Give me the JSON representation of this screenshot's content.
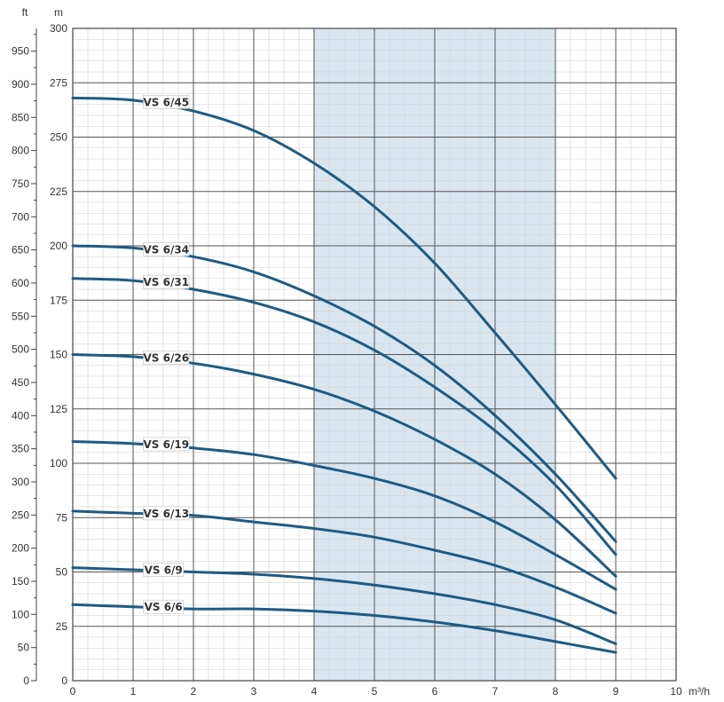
{
  "chart_data": {
    "type": "line",
    "title": "",
    "xlabel": "m³/h",
    "ylabel": "m",
    "y2label": "ft",
    "xlim": [
      0,
      10
    ],
    "ylim": [
      0,
      300
    ],
    "y2lim": [
      0,
      984.25
    ],
    "x_ticks": [
      0,
      1,
      2,
      3,
      4,
      5,
      6,
      7,
      8,
      9,
      10
    ],
    "y_ticks": [
      0,
      25,
      50,
      75,
      100,
      125,
      150,
      175,
      200,
      225,
      250,
      275,
      300
    ],
    "y2_ticks": [
      0,
      50,
      100,
      150,
      200,
      250,
      300,
      350,
      400,
      450,
      500,
      550,
      600,
      650,
      700,
      750,
      800,
      850,
      900,
      950
    ],
    "grid": true,
    "highlight_x_range": [
      4,
      8
    ],
    "colors": {
      "curve": "#1e5b84",
      "highlight": "#dae6ef",
      "grid_major": "#555555",
      "grid_minor": "#d0d0d0"
    },
    "series": [
      {
        "name": "VS 6/45",
        "label_x": 1.2,
        "x": [
          0,
          1,
          2,
          3,
          4,
          5,
          6,
          7,
          8,
          9
        ],
        "y": [
          268,
          267,
          262,
          253,
          238,
          218,
          192,
          160,
          127,
          93
        ]
      },
      {
        "name": "VS 6/34",
        "label_x": 1.2,
        "x": [
          0,
          1,
          2,
          3,
          4,
          5,
          6,
          7,
          8,
          9
        ],
        "y": [
          200,
          199,
          195,
          188,
          177,
          163,
          145,
          122,
          95,
          64
        ]
      },
      {
        "name": "VS 6/31",
        "label_x": 1.2,
        "x": [
          0,
          1,
          2,
          3,
          4,
          5,
          6,
          7,
          8,
          9
        ],
        "y": [
          185,
          184,
          180,
          174,
          165,
          152,
          135,
          115,
          90,
          58
        ]
      },
      {
        "name": "VS 6/26",
        "label_x": 1.2,
        "x": [
          0,
          1,
          2,
          3,
          4,
          5,
          6,
          7,
          8,
          9
        ],
        "y": [
          150,
          149,
          146,
          141,
          134,
          124,
          111,
          95,
          74,
          48
        ]
      },
      {
        "name": "VS 6/19",
        "label_x": 1.2,
        "x": [
          0,
          1,
          2,
          3,
          4,
          5,
          6,
          7,
          8,
          9
        ],
        "y": [
          110,
          109,
          107,
          104,
          99,
          93,
          85,
          73,
          58,
          42
        ]
      },
      {
        "name": "VS 6/13",
        "label_x": 1.2,
        "x": [
          0,
          1,
          2,
          3,
          4,
          5,
          6,
          7,
          8,
          9
        ],
        "y": [
          78,
          77,
          76,
          73,
          70,
          66,
          60,
          53,
          43,
          31
        ]
      },
      {
        "name": "VS 6/9",
        "label_x": 1.2,
        "x": [
          0,
          1,
          2,
          3,
          4,
          5,
          6,
          7,
          8,
          9
        ],
        "y": [
          52,
          51,
          50,
          49,
          47,
          44,
          40,
          35,
          28,
          17
        ]
      },
      {
        "name": "VS 6/6",
        "label_x": 1.2,
        "x": [
          0,
          1,
          2,
          3,
          4,
          5,
          6,
          7,
          8,
          9
        ],
        "y": [
          35,
          34,
          33,
          33,
          32,
          30,
          27,
          23,
          18,
          13
        ]
      }
    ]
  }
}
